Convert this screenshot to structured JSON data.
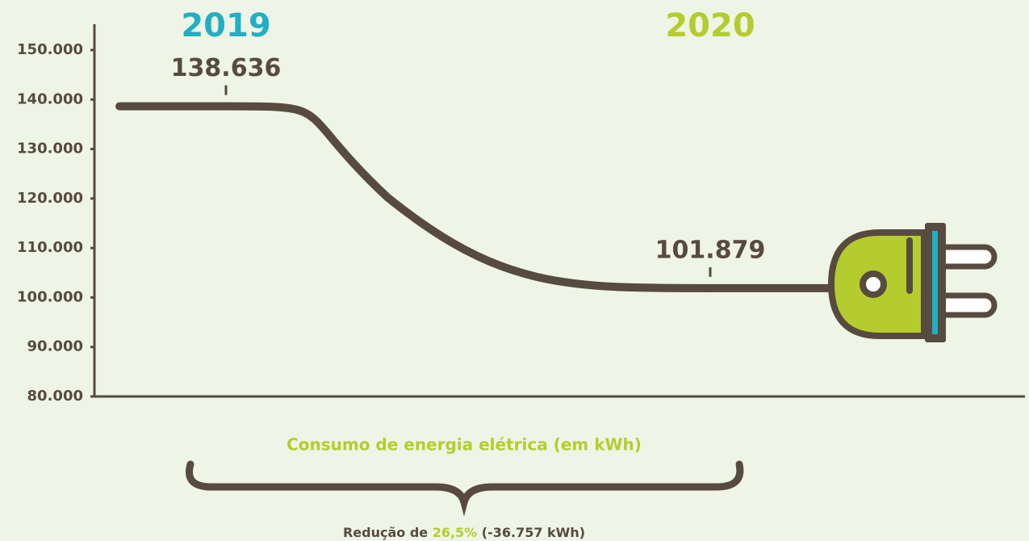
{
  "chart_data": {
    "type": "line",
    "categories": [
      "2019",
      "2020"
    ],
    "category_colors": [
      "#22afc4",
      "#b5cc2e"
    ],
    "series": [
      {
        "color": "#574a3e",
        "values": [
          138636,
          101879
        ],
        "value_labels": [
          "138.636",
          "101.879"
        ]
      }
    ],
    "ylim": [
      80000,
      150000
    ],
    "yticks": [
      {
        "value": 80000,
        "label": "80.000"
      },
      {
        "value": 90000,
        "label": "90.000"
      },
      {
        "value": 100000,
        "label": "100.000"
      },
      {
        "value": 110000,
        "label": "110.000"
      },
      {
        "value": 120000,
        "label": "120.000"
      },
      {
        "value": 130000,
        "label": "130.000"
      },
      {
        "value": 140000,
        "label": "140.000"
      },
      {
        "value": 150000,
        "label": "150.000"
      }
    ],
    "xlabel": "Consumo de energia elétrica (em kWh)",
    "annotation": {
      "parts": [
        "Redução de ",
        "26,5%",
        " (-36.757 kWh)"
      ],
      "highlight_color": "#b5cc2e"
    }
  }
}
